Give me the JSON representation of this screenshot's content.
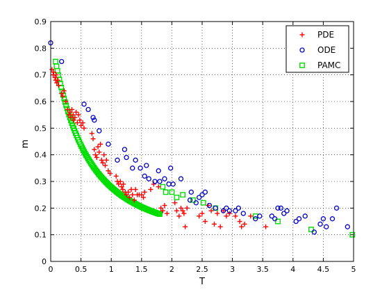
{
  "chart_data": {
    "type": "scatter",
    "xlabel": "T",
    "ylabel": "m",
    "xlim": [
      0,
      5
    ],
    "ylim": [
      0,
      0.9
    ],
    "xticks": [
      "0",
      "0.5",
      "1",
      "1.5",
      "2",
      "2.5",
      "3",
      "3.5",
      "4",
      "4.5",
      "5"
    ],
    "yticks": [
      "0",
      "0.1",
      "0.2",
      "0.3",
      "0.4",
      "0.5",
      "0.6",
      "0.7",
      "0.8",
      "0.9"
    ],
    "grid": true,
    "legend_position": "top-right",
    "series": [
      {
        "name": "PDE",
        "marker": "plus",
        "color": "#ff0000",
        "points": [
          [
            0.02,
            0.72
          ],
          [
            0.04,
            0.7
          ],
          [
            0.05,
            0.71
          ],
          [
            0.07,
            0.69
          ],
          [
            0.08,
            0.68
          ],
          [
            0.09,
            0.7
          ],
          [
            0.1,
            0.67
          ],
          [
            0.12,
            0.68
          ],
          [
            0.13,
            0.66
          ],
          [
            0.18,
            0.63
          ],
          [
            0.2,
            0.62
          ],
          [
            0.22,
            0.64
          ],
          [
            0.25,
            0.6
          ],
          [
            0.28,
            0.57
          ],
          [
            0.3,
            0.55
          ],
          [
            0.32,
            0.56
          ],
          [
            0.33,
            0.54
          ],
          [
            0.35,
            0.57
          ],
          [
            0.37,
            0.55
          ],
          [
            0.38,
            0.53
          ],
          [
            0.4,
            0.54
          ],
          [
            0.42,
            0.56
          ],
          [
            0.44,
            0.52
          ],
          [
            0.46,
            0.55
          ],
          [
            0.48,
            0.53
          ],
          [
            0.5,
            0.51
          ],
          [
            0.53,
            0.52
          ],
          [
            0.55,
            0.5
          ],
          [
            0.68,
            0.48
          ],
          [
            0.7,
            0.46
          ],
          [
            0.72,
            0.42
          ],
          [
            0.74,
            0.4
          ],
          [
            0.76,
            0.39
          ],
          [
            0.78,
            0.43
          ],
          [
            0.8,
            0.41
          ],
          [
            0.82,
            0.44
          ],
          [
            0.84,
            0.38
          ],
          [
            0.86,
            0.37
          ],
          [
            0.88,
            0.4
          ],
          [
            0.9,
            0.36
          ],
          [
            0.92,
            0.38
          ],
          [
            0.95,
            0.34
          ],
          [
            0.98,
            0.33
          ],
          [
            1.08,
            0.32
          ],
          [
            1.1,
            0.3
          ],
          [
            1.12,
            0.29
          ],
          [
            1.15,
            0.3
          ],
          [
            1.17,
            0.28
          ],
          [
            1.19,
            0.27
          ],
          [
            1.2,
            0.29
          ],
          [
            1.23,
            0.26
          ],
          [
            1.25,
            0.25
          ],
          [
            1.28,
            0.26
          ],
          [
            1.3,
            0.24
          ],
          [
            1.33,
            0.27
          ],
          [
            1.35,
            0.25
          ],
          [
            1.38,
            0.23
          ],
          [
            1.4,
            0.27
          ],
          [
            1.43,
            0.25
          ],
          [
            1.46,
            0.25
          ],
          [
            1.5,
            0.25
          ],
          [
            1.53,
            0.24
          ],
          [
            1.55,
            0.26
          ],
          [
            1.65,
            0.27
          ],
          [
            1.7,
            0.29
          ],
          [
            1.78,
            0.28
          ],
          [
            1.82,
            0.2
          ],
          [
            1.85,
            0.19
          ],
          [
            1.88,
            0.21
          ],
          [
            1.92,
            0.18
          ],
          [
            2.05,
            0.22
          ],
          [
            2.08,
            0.19
          ],
          [
            2.12,
            0.17
          ],
          [
            2.15,
            0.2
          ],
          [
            2.18,
            0.19
          ],
          [
            2.2,
            0.18
          ],
          [
            2.22,
            0.13
          ],
          [
            2.25,
            0.2
          ],
          [
            2.45,
            0.17
          ],
          [
            2.5,
            0.18
          ],
          [
            2.55,
            0.15
          ],
          [
            2.6,
            0.21
          ],
          [
            2.65,
            0.19
          ],
          [
            2.7,
            0.14
          ],
          [
            2.75,
            0.18
          ],
          [
            2.8,
            0.13
          ],
          [
            2.85,
            0.19
          ],
          [
            2.9,
            0.17
          ],
          [
            2.95,
            0.18
          ],
          [
            3.05,
            0.17
          ],
          [
            3.12,
            0.15
          ],
          [
            3.15,
            0.13
          ],
          [
            3.2,
            0.14
          ],
          [
            3.3,
            0.17
          ],
          [
            3.55,
            0.13
          ]
        ]
      },
      {
        "name": "ODE",
        "marker": "circle",
        "color": "#0000cc",
        "points": [
          [
            0.0,
            0.82
          ],
          [
            0.18,
            0.75
          ],
          [
            0.55,
            0.59
          ],
          [
            0.62,
            0.57
          ],
          [
            0.7,
            0.54
          ],
          [
            0.72,
            0.53
          ],
          [
            0.8,
            0.49
          ],
          [
            0.95,
            0.44
          ],
          [
            1.1,
            0.38
          ],
          [
            1.22,
            0.42
          ],
          [
            1.25,
            0.39
          ],
          [
            1.35,
            0.35
          ],
          [
            1.4,
            0.38
          ],
          [
            1.48,
            0.35
          ],
          [
            1.55,
            0.32
          ],
          [
            1.58,
            0.36
          ],
          [
            1.62,
            0.31
          ],
          [
            1.72,
            0.3
          ],
          [
            1.78,
            0.34
          ],
          [
            1.8,
            0.3
          ],
          [
            1.88,
            0.31
          ],
          [
            1.95,
            0.29
          ],
          [
            1.98,
            0.35
          ],
          [
            2.02,
            0.29
          ],
          [
            2.15,
            0.31
          ],
          [
            2.3,
            0.23
          ],
          [
            2.32,
            0.26
          ],
          [
            2.4,
            0.22
          ],
          [
            2.45,
            0.24
          ],
          [
            2.5,
            0.25
          ],
          [
            2.55,
            0.26
          ],
          [
            2.62,
            0.21
          ],
          [
            2.72,
            0.2
          ],
          [
            2.85,
            0.19
          ],
          [
            2.9,
            0.2
          ],
          [
            2.95,
            0.19
          ],
          [
            3.05,
            0.19
          ],
          [
            3.1,
            0.2
          ],
          [
            3.18,
            0.18
          ],
          [
            3.38,
            0.16
          ],
          [
            3.45,
            0.17
          ],
          [
            3.65,
            0.17
          ],
          [
            3.7,
            0.16
          ],
          [
            3.75,
            0.2
          ],
          [
            3.8,
            0.2
          ],
          [
            3.85,
            0.18
          ],
          [
            3.9,
            0.19
          ],
          [
            4.05,
            0.15
          ],
          [
            4.1,
            0.16
          ],
          [
            4.2,
            0.17
          ],
          [
            4.35,
            0.11
          ],
          [
            4.45,
            0.14
          ],
          [
            4.5,
            0.16
          ],
          [
            4.55,
            0.13
          ],
          [
            4.65,
            0.16
          ],
          [
            4.72,
            0.2
          ],
          [
            4.9,
            0.13
          ]
        ]
      },
      {
        "name": "PAMC",
        "marker": "square",
        "color": "#00dd00",
        "curve": {
          "x_start": 0.08,
          "x_end": 1.8,
          "count": 110,
          "a": 0.1052,
          "b": 0.3948,
          "c": 0.75,
          "d": 1.0
        },
        "points": [
          [
            1.85,
            0.28
          ],
          [
            1.9,
            0.26
          ],
          [
            2.0,
            0.26
          ],
          [
            2.08,
            0.24
          ],
          [
            2.18,
            0.25
          ],
          [
            2.35,
            0.23
          ],
          [
            2.52,
            0.22
          ],
          [
            2.72,
            0.2
          ],
          [
            3.38,
            0.17
          ],
          [
            3.75,
            0.15
          ],
          [
            4.3,
            0.12
          ],
          [
            4.98,
            0.1
          ]
        ]
      }
    ]
  }
}
